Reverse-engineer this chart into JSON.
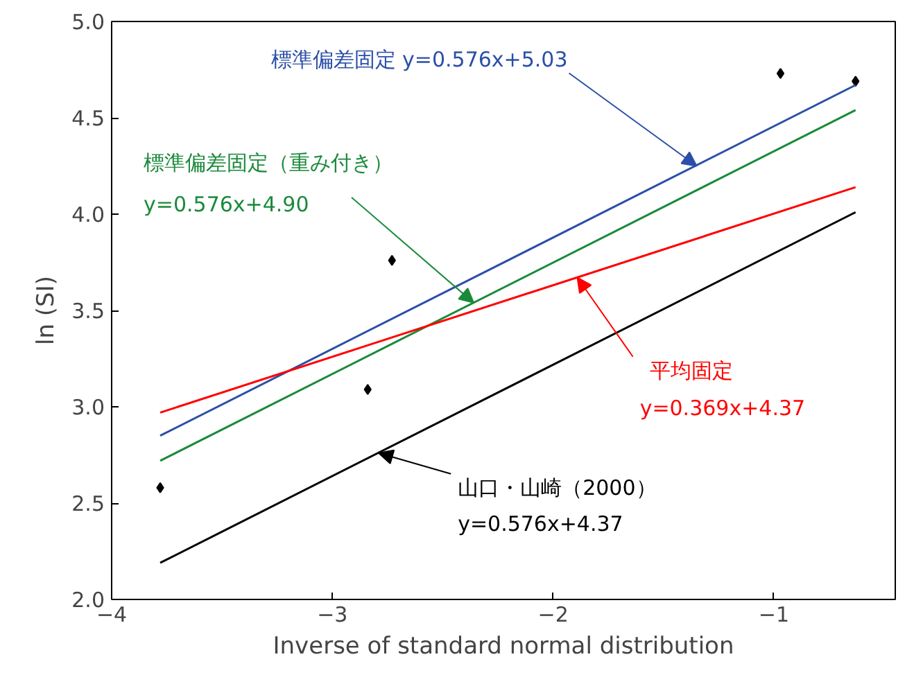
{
  "chart_data": {
    "type": "line",
    "xlabel": "Inverse of standard normal distribution",
    "ylabel": "ln (SI)",
    "xlim": [
      -4,
      -0.45
    ],
    "ylim": [
      2.0,
      5.0
    ],
    "xticks": [
      {
        "value": -4,
        "label": "−4"
      },
      {
        "value": -3,
        "label": "−3"
      },
      {
        "value": -2,
        "label": "−2"
      },
      {
        "value": -1,
        "label": "−1"
      }
    ],
    "yticks": [
      {
        "value": 2,
        "label": "2.0"
      },
      {
        "value": 2.5,
        "label": "2.5"
      },
      {
        "value": 3,
        "label": "3.0"
      },
      {
        "value": 3.5,
        "label": "3.5"
      },
      {
        "value": 4,
        "label": "4.0"
      },
      {
        "value": 4.5,
        "label": "4.5"
      },
      {
        "value": 5,
        "label": "5.0"
      }
    ],
    "grid": false,
    "series": [
      {
        "type": "scatter",
        "marker": "diamond",
        "color": "#000000",
        "x": [
          -3.78,
          -2.84,
          -2.73,
          -0.97,
          -0.63
        ],
        "values": [
          2.58,
          3.09,
          3.76,
          4.73,
          4.69
        ]
      },
      {
        "color": "#2b4fa8",
        "x": [
          -3.78,
          -0.63
        ],
        "values": [
          2.85,
          4.67
        ]
      },
      {
        "color": "#1a8a3a",
        "x": [
          -3.78,
          -0.63
        ],
        "values": [
          2.72,
          4.54
        ]
      },
      {
        "color": "#ff0000",
        "x": [
          -3.78,
          -0.63
        ],
        "values": [
          2.97,
          4.14
        ]
      },
      {
        "color": "#000000",
        "x": [
          -3.78,
          -0.63
        ],
        "values": [
          2.19,
          4.01
        ]
      }
    ],
    "annotations": [
      {
        "text": "標準偏差固定 y=0.576x+5.03",
        "x": -1.35,
        "y": 4.25
      },
      {
        "text": "標準偏差固定（重み付き）\ny=0.576x+4.90",
        "x": -2.36,
        "y": 3.54
      },
      {
        "text": "平均固定\ny=0.369x+4.37",
        "x": -1.89,
        "y": 3.67
      },
      {
        "text": "山口・山崎（2000）\ny=0.576x+4.37",
        "x": -2.79,
        "y": 2.76
      }
    ]
  }
}
